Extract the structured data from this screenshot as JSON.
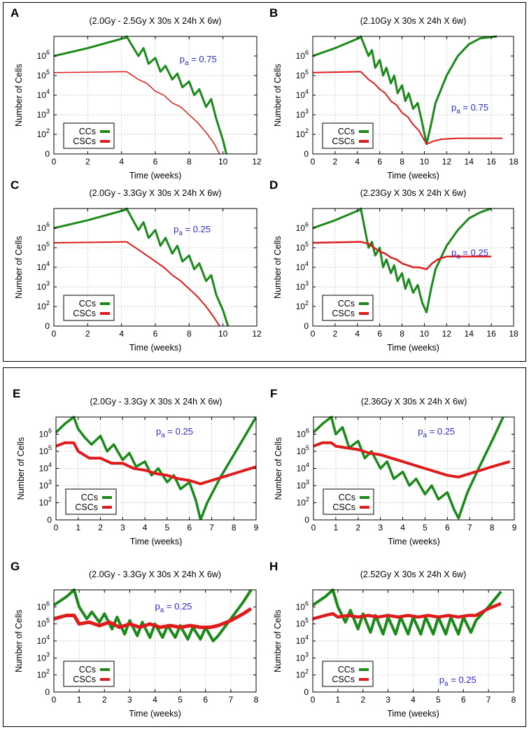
{
  "chart_data": [
    {
      "panel": "A",
      "type": "line",
      "title": "(2.0Gy - 2.5Gy X 30s X 24h X 6w)",
      "xlabel": "Time (weeks)",
      "ylabel": "Number of Cells",
      "xlim": [
        0,
        12
      ],
      "xticks": [
        0,
        2,
        4,
        6,
        8,
        10,
        12
      ],
      "ylim": [
        0,
        6
      ],
      "yticks": [
        "0",
        "10^2",
        "10^3",
        "10^4",
        "10^5",
        "10^6"
      ],
      "annotation": "p_a = 0.75",
      "legend": [
        "CCs",
        "CSCs"
      ],
      "legend_position": "bottom-left",
      "series": [
        {
          "name": "CCs",
          "color": "#1b8a1b",
          "thickness": 3,
          "x": [
            0,
            2,
            4.3,
            4.3,
            5,
            5.3,
            5.6,
            6,
            6.3,
            6.6,
            7,
            7.3,
            7.6,
            8,
            8.3,
            8.6,
            9,
            9.3,
            9.6,
            10,
            10.2
          ],
          "y": [
            5.0,
            5.4,
            5.95,
            6.0,
            5.0,
            5.4,
            4.6,
            4.9,
            4.2,
            4.5,
            3.8,
            4.1,
            3.4,
            3.7,
            3.0,
            3.3,
            2.4,
            2.8,
            1.8,
            0.7,
            0.0
          ]
        },
        {
          "name": "CSCs",
          "color": "#e01b1b",
          "thickness": 1.5,
          "x": [
            0,
            4.3,
            5,
            5.5,
            6,
            6.5,
            7,
            7.5,
            8,
            8.5,
            9,
            9.5,
            9.8
          ],
          "y": [
            4.15,
            4.2,
            3.8,
            3.6,
            3.2,
            3.0,
            2.6,
            2.4,
            2.0,
            1.6,
            1.1,
            0.5,
            0.0
          ]
        }
      ]
    },
    {
      "panel": "B",
      "type": "line",
      "title": "(2.10Gy X 30s X 24h X 6w)",
      "xlabel": "Time (weeks)",
      "ylabel": "Number of Cells",
      "xlim": [
        0,
        18
      ],
      "xticks": [
        0,
        2,
        4,
        6,
        8,
        10,
        12,
        14,
        16,
        18
      ],
      "ylim": [
        0,
        6
      ],
      "yticks": [
        "0",
        "10^2",
        "10^3",
        "10^4",
        "10^5",
        "10^6"
      ],
      "annotation": "p_a = 0.75",
      "legend": [
        "CCs",
        "CSCs"
      ],
      "legend_position": "bottom-left",
      "series": [
        {
          "name": "CCs",
          "color": "#1b8a1b",
          "thickness": 3,
          "x": [
            0,
            2,
            4.3,
            4.3,
            5,
            5.3,
            5.6,
            6,
            6.3,
            6.6,
            7,
            7.3,
            7.6,
            8,
            8.3,
            8.6,
            9,
            9.4,
            9.8,
            10.2,
            10.6,
            11,
            12,
            13,
            14,
            15,
            16.5
          ],
          "y": [
            5.0,
            5.4,
            5.95,
            6.0,
            5.0,
            5.3,
            4.4,
            4.8,
            4.0,
            4.4,
            3.6,
            4.0,
            3.1,
            3.5,
            2.7,
            3.1,
            2.3,
            2.6,
            1.6,
            0.5,
            1.5,
            2.6,
            4.0,
            5.0,
            5.6,
            5.9,
            6.0
          ]
        },
        {
          "name": "CSCs",
          "color": "#e01b1b",
          "thickness": 2,
          "x": [
            0,
            4.3,
            5,
            5.5,
            6,
            6.5,
            7,
            7.5,
            8,
            8.5,
            9,
            9.5,
            10.2,
            10.8,
            11.5,
            13,
            15,
            17
          ],
          "y": [
            4.15,
            4.2,
            3.8,
            3.6,
            3.3,
            3.1,
            2.7,
            2.5,
            2.1,
            1.9,
            1.5,
            1.2,
            0.5,
            0.65,
            0.75,
            0.8,
            0.8,
            0.8
          ]
        }
      ]
    },
    {
      "panel": "C",
      "type": "line",
      "title": "(2.0Gy - 3.3Gy X 30s X 24h X 6w)",
      "xlabel": "Time (weeks)",
      "ylabel": "Number of Cells",
      "xlim": [
        0,
        12
      ],
      "xticks": [
        0,
        2,
        4,
        6,
        8,
        10,
        12
      ],
      "ylim": [
        0,
        6
      ],
      "yticks": [
        "0",
        "10^2",
        "10^3",
        "10^4",
        "10^5",
        "10^6"
      ],
      "annotation": "p_a = 0.25",
      "legend": [
        "CCs",
        "CSCs"
      ],
      "legend_position": "bottom-left",
      "series": [
        {
          "name": "CCs",
          "color": "#1b8a1b",
          "thickness": 3,
          "x": [
            0,
            2,
            4.3,
            4.3,
            5,
            5.3,
            5.6,
            6,
            6.3,
            6.6,
            7,
            7.3,
            7.6,
            8,
            8.3,
            8.6,
            9,
            9.3,
            9.6,
            10,
            10.3
          ],
          "y": [
            5.0,
            5.4,
            5.95,
            6.0,
            4.9,
            5.3,
            4.5,
            4.9,
            4.1,
            4.5,
            3.7,
            4.1,
            3.3,
            3.6,
            2.9,
            3.2,
            2.3,
            2.6,
            1.6,
            0.8,
            0.0
          ]
        },
        {
          "name": "CSCs",
          "color": "#e01b1b",
          "thickness": 2,
          "x": [
            0,
            4.3,
            5,
            5.5,
            6,
            6.5,
            7,
            7.5,
            8,
            8.5,
            9,
            9.5,
            9.8
          ],
          "y": [
            4.25,
            4.3,
            3.9,
            3.6,
            3.3,
            3.0,
            2.6,
            2.3,
            1.9,
            1.5,
            1.0,
            0.4,
            0.0
          ]
        }
      ]
    },
    {
      "panel": "D",
      "type": "line",
      "title": "(2.23Gy X 30s X 24h X 6w)",
      "xlabel": "Time (weeks)",
      "ylabel": "Number of Cells",
      "xlim": [
        0,
        18
      ],
      "xticks": [
        0,
        2,
        4,
        6,
        8,
        10,
        12,
        14,
        16,
        18
      ],
      "ylim": [
        0,
        6
      ],
      "yticks": [
        "0",
        "10^2",
        "10^3",
        "10^4",
        "10^5",
        "10^6"
      ],
      "annotation": "p_a = 0.25",
      "legend": [
        "CCs",
        "CSCs"
      ],
      "legend_position": "bottom-left",
      "series": [
        {
          "name": "CCs",
          "color": "#1b8a1b",
          "thickness": 3,
          "x": [
            0,
            2,
            4.3,
            4.3,
            5,
            5.3,
            5.6,
            6,
            6.3,
            6.6,
            7,
            7.3,
            7.6,
            8,
            8.3,
            8.6,
            9,
            9.4,
            9.8,
            10.2,
            10.6,
            11,
            12,
            13,
            14,
            15,
            16
          ],
          "y": [
            5.0,
            5.4,
            5.95,
            6.0,
            4.0,
            4.3,
            3.6,
            4.0,
            3.0,
            3.4,
            2.7,
            3.1,
            2.3,
            2.7,
            1.9,
            2.4,
            1.7,
            2.1,
            1.2,
            0.7,
            1.9,
            2.9,
            4.1,
            4.9,
            5.5,
            5.8,
            6.0
          ]
        },
        {
          "name": "CSCs",
          "color": "#e01b1b",
          "thickness": 2.5,
          "x": [
            0,
            4.3,
            5,
            5.5,
            6,
            6.5,
            7,
            7.5,
            8,
            8.5,
            9,
            9.5,
            10.2,
            10.7,
            11.2,
            12,
            14,
            16
          ],
          "y": [
            4.25,
            4.3,
            4.2,
            4.0,
            3.8,
            3.7,
            3.5,
            3.4,
            3.2,
            3.1,
            3.0,
            3.0,
            2.9,
            3.2,
            3.4,
            3.55,
            3.55,
            3.55
          ]
        }
      ]
    },
    {
      "panel": "E",
      "type": "line",
      "title": "(2.0Gy - 3.3Gy X 30s X 24h X 6w)",
      "xlabel": "Time (weeks)",
      "ylabel": "Number of Cells",
      "xlim": [
        0,
        9
      ],
      "xticks": [
        0,
        1,
        2,
        3,
        4,
        5,
        6,
        7,
        8,
        9
      ],
      "ylim": [
        0,
        6
      ],
      "yticks": [
        "0",
        "10^2",
        "10^3",
        "10^4",
        "10^5",
        "10^6"
      ],
      "annotation": "p_a = 0.25",
      "legend": [
        "CCs",
        "CSCs"
      ],
      "legend_position": "bottom-left",
      "series": [
        {
          "name": "CCs",
          "color": "#1b8a1b",
          "thickness": 3.5,
          "x": [
            0,
            0.4,
            0.8,
            1.0,
            1.3,
            1.6,
            2.0,
            2.3,
            2.6,
            3.0,
            3.3,
            3.6,
            4.0,
            4.3,
            4.6,
            5.0,
            5.3,
            5.6,
            6.0,
            6.3,
            6.5,
            6.8,
            7.4,
            8.0,
            8.5,
            9.0
          ],
          "y": [
            5.1,
            5.6,
            6.0,
            5.3,
            4.8,
            4.4,
            4.9,
            4.0,
            4.4,
            3.5,
            3.9,
            3.1,
            3.4,
            2.6,
            3.0,
            2.2,
            2.6,
            1.8,
            2.2,
            1.1,
            0.0,
            1.0,
            2.5,
            3.8,
            4.9,
            6.0
          ]
        },
        {
          "name": "CSCs",
          "color": "#e01b1b",
          "thickness": 4,
          "x": [
            0,
            0.4,
            0.8,
            1.0,
            1.5,
            2.0,
            2.5,
            3.0,
            3.5,
            4.0,
            4.5,
            5.0,
            5.5,
            6.0,
            6.5,
            7.0,
            7.5,
            8.0,
            8.5,
            9.0
          ],
          "y": [
            4.3,
            4.5,
            4.5,
            4.0,
            3.6,
            3.6,
            3.3,
            3.3,
            3.0,
            2.9,
            2.7,
            2.6,
            2.4,
            2.3,
            2.1,
            2.3,
            2.5,
            2.7,
            2.9,
            3.1
          ]
        }
      ]
    },
    {
      "panel": "F",
      "type": "line",
      "title": "(2.36Gy X 30s X 24h X 6w)",
      "xlabel": "Time (weeks)",
      "ylabel": "Number of Cells",
      "xlim": [
        0,
        9
      ],
      "xticks": [
        0,
        1,
        2,
        3,
        4,
        5,
        6,
        7,
        8,
        9
      ],
      "ylim": [
        0,
        6
      ],
      "yticks": [
        "0",
        "10^2",
        "10^3",
        "10^4",
        "10^5",
        "10^6"
      ],
      "annotation": "p_a = 0.25",
      "legend": [
        "CCs",
        "CSCs"
      ],
      "legend_position": "bottom-left",
      "series": [
        {
          "name": "CCs",
          "color": "#1b8a1b",
          "thickness": 3.5,
          "x": [
            0,
            0.4,
            0.8,
            1.0,
            1.3,
            1.6,
            2.0,
            2.3,
            2.6,
            3.0,
            3.3,
            3.6,
            4.0,
            4.3,
            4.6,
            5.0,
            5.3,
            5.6,
            6.0,
            6.3,
            6.5,
            6.9,
            7.4,
            8.0,
            8.5
          ],
          "y": [
            5.1,
            5.6,
            6.0,
            5.0,
            5.4,
            4.2,
            4.6,
            3.6,
            4.0,
            3.0,
            3.4,
            2.4,
            2.8,
            2.0,
            2.4,
            1.5,
            2.0,
            1.2,
            1.6,
            0.6,
            0.1,
            1.6,
            3.0,
            4.6,
            6.0
          ]
        },
        {
          "name": "CSCs",
          "color": "#e01b1b",
          "thickness": 4,
          "x": [
            0,
            0.4,
            0.8,
            1.0,
            1.5,
            2.0,
            2.5,
            3.0,
            3.5,
            4.0,
            4.5,
            5.0,
            5.5,
            6.0,
            6.5,
            7.0,
            7.5,
            8.0,
            8.8
          ],
          "y": [
            4.3,
            4.5,
            4.5,
            4.3,
            4.2,
            4.1,
            3.9,
            3.8,
            3.6,
            3.4,
            3.2,
            3.0,
            2.8,
            2.6,
            2.5,
            2.7,
            2.9,
            3.1,
            3.4
          ]
        }
      ]
    },
    {
      "panel": "G",
      "type": "line",
      "title": "(2.0Gy - 3.3Gy X 30s X 24h X 6w)",
      "xlabel": "Time (weeks)",
      "ylabel": "Number of Cells",
      "xlim": [
        0,
        8
      ],
      "xticks": [
        0,
        1,
        2,
        3,
        4,
        5,
        6,
        7,
        8
      ],
      "ylim": [
        0,
        6
      ],
      "yticks": [
        "0",
        "10^2",
        "10^3",
        "10^4",
        "10^5",
        "10^6"
      ],
      "annotation": "p_a = 0.25",
      "legend": [
        "CCs",
        "CSCs"
      ],
      "legend_position": "bottom-left",
      "series": [
        {
          "name": "CCs",
          "color": "#1b8a1b",
          "thickness": 4,
          "x": [
            0,
            0.5,
            0.8,
            1.0,
            1.3,
            1.5,
            1.8,
            2.0,
            2.3,
            2.5,
            2.8,
            3.0,
            3.3,
            3.5,
            3.8,
            4.0,
            4.3,
            4.5,
            4.8,
            5.0,
            5.3,
            5.5,
            5.8,
            6.0,
            6.3,
            6.5,
            7.0,
            7.5,
            7.8
          ],
          "y": [
            5.1,
            5.6,
            6.0,
            5.0,
            4.3,
            4.7,
            4.1,
            4.6,
            3.7,
            4.4,
            3.4,
            4.2,
            3.3,
            4.1,
            3.2,
            4.0,
            3.2,
            3.9,
            3.2,
            3.9,
            3.1,
            3.8,
            3.1,
            3.8,
            3.0,
            3.3,
            4.3,
            5.3,
            6.0
          ]
        },
        {
          "name": "CSCs",
          "color": "#e01b1b",
          "thickness": 5,
          "x": [
            0,
            0.5,
            0.8,
            1.0,
            1.4,
            1.8,
            2.2,
            2.6,
            3.0,
            3.4,
            3.8,
            4.2,
            4.6,
            5.0,
            5.4,
            5.8,
            6.2,
            6.5,
            7.0,
            7.5,
            7.8
          ],
          "y": [
            4.3,
            4.5,
            4.5,
            4.0,
            4.1,
            3.9,
            4.1,
            3.8,
            4.0,
            3.8,
            4.0,
            3.8,
            3.9,
            3.8,
            3.9,
            3.8,
            3.8,
            3.9,
            4.2,
            4.6,
            4.9
          ]
        }
      ]
    },
    {
      "panel": "H",
      "type": "line",
      "title": "(2.52Gy X 30s X 24h X 6w)",
      "xlabel": "Time (weeks)",
      "ylabel": "Number of Cells",
      "xlim": [
        0,
        8
      ],
      "xticks": [
        0,
        1,
        2,
        3,
        4,
        5,
        6,
        7,
        8
      ],
      "ylim": [
        0,
        6
      ],
      "yticks": [
        "0",
        "10^2",
        "10^3",
        "10^4",
        "10^5",
        "10^6"
      ],
      "annotation": "p_a = 0.25",
      "legend": [
        "CCs",
        "CSCs"
      ],
      "legend_position": "bottom-left",
      "series": [
        {
          "name": "CCs",
          "color": "#1b8a1b",
          "thickness": 4,
          "x": [
            0,
            0.5,
            0.8,
            1.0,
            1.3,
            1.5,
            1.8,
            2.0,
            2.3,
            2.5,
            2.8,
            3.0,
            3.3,
            3.5,
            3.8,
            4.0,
            4.3,
            4.5,
            4.8,
            5.0,
            5.3,
            5.5,
            5.8,
            6.0,
            6.3,
            6.5,
            7.0,
            7.5
          ],
          "y": [
            5.1,
            5.6,
            6.0,
            5.0,
            4.1,
            4.8,
            3.7,
            4.6,
            3.5,
            4.5,
            3.4,
            4.4,
            3.4,
            4.4,
            3.4,
            4.4,
            3.4,
            4.4,
            3.4,
            4.4,
            3.4,
            4.4,
            3.4,
            4.4,
            3.5,
            4.2,
            5.0,
            5.9
          ]
        },
        {
          "name": "CSCs",
          "color": "#e01b1b",
          "thickness": 4.5,
          "x": [
            0,
            0.5,
            0.8,
            1.0,
            1.4,
            1.8,
            2.2,
            2.6,
            3.0,
            3.4,
            3.8,
            4.2,
            4.6,
            5.0,
            5.4,
            5.8,
            6.2,
            6.5,
            7.0,
            7.5
          ],
          "y": [
            4.3,
            4.5,
            4.6,
            4.4,
            4.5,
            4.4,
            4.5,
            4.4,
            4.5,
            4.4,
            4.5,
            4.4,
            4.5,
            4.4,
            4.5,
            4.4,
            4.5,
            4.5,
            4.9,
            5.2
          ]
        }
      ]
    }
  ]
}
